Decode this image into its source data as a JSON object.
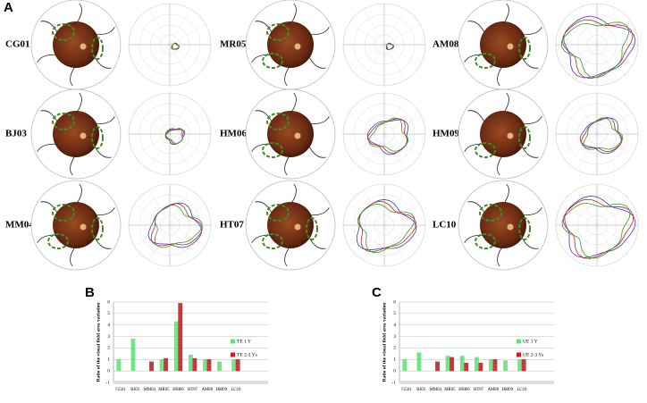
{
  "panel_a": {
    "label": "A",
    "cases": [
      "CG01",
      "MR05",
      "AM08",
      "BJ03",
      "HM06",
      "HM09",
      "MM04",
      "HT07",
      "LC10"
    ]
  },
  "chart_data": [
    {
      "type": "bar",
      "label": "B",
      "y_label": "Ratio of the visual field area variation",
      "categories": [
        "CG01",
        "BJ03",
        "MM04",
        "MR05",
        "HM06",
        "HT07",
        "AM08",
        "HM09",
        "LC10"
      ],
      "series": [
        {
          "name": "TE 1 Y",
          "color": "#66e07a",
          "values": [
            1.0,
            2.8,
            null,
            1.0,
            4.3,
            1.4,
            1.0,
            0.8,
            1.0
          ]
        },
        {
          "name": "TE 2-3 Ys",
          "color": "#c8202a",
          "values": [
            null,
            null,
            0.8,
            1.1,
            5.9,
            1.1,
            1.0,
            null,
            1.0
          ]
        }
      ],
      "ylim": [
        -1,
        6
      ],
      "yticks": [
        -1,
        0,
        1,
        2,
        3,
        4,
        5,
        6
      ],
      "grid": true,
      "legend": "right"
    },
    {
      "type": "bar",
      "label": "C",
      "y_label": "Ratio of the visual field area variation",
      "categories": [
        "CG01",
        "BJ03",
        "MM04",
        "MR05",
        "HM06",
        "HT07",
        "AM08",
        "HM09",
        "LC10"
      ],
      "series": [
        {
          "name": "UE 1 Y",
          "color": "#66e07a",
          "values": [
            1.0,
            1.6,
            null,
            1.3,
            1.3,
            1.2,
            1.0,
            0.9,
            1.0
          ]
        },
        {
          "name": "UE 2-3 Ys",
          "color": "#c8202a",
          "values": [
            null,
            null,
            0.8,
            1.2,
            0.7,
            0.7,
            1.0,
            null,
            1.0
          ]
        }
      ],
      "ylim": [
        -1,
        6
      ],
      "yticks": [
        -1,
        0,
        1,
        2,
        3,
        4,
        5,
        6
      ],
      "grid": true,
      "legend": "right"
    }
  ]
}
